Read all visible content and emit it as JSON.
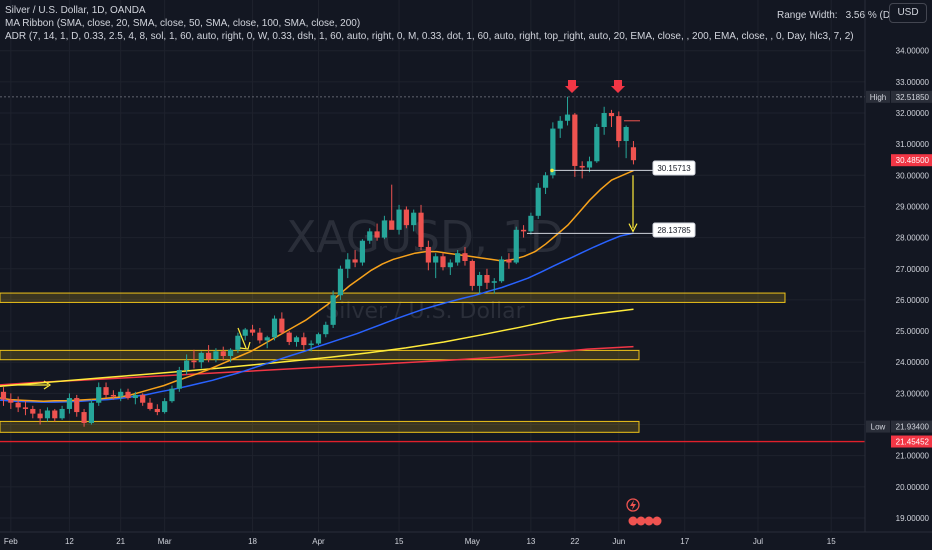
{
  "legend": {
    "title": "Silver / U.S. Dollar, 1D, OANDA",
    "ma_ribbon": "MA Ribbon (SMA, close, 20, SMA, close, 50, SMA, close, 100, SMA, close, 200)",
    "adr": "ADR (7, 14, 1, D, 0.33, 2.5, 4, 8, sol, 1, 60, auto, right, 0, W, 0.33, dsh, 1, 60, auto, right, 0, M, 0.33, dot, 1, 60, auto, right, top_right, auto, 20, EMA, close, , 200, EMA, close, , 0, Day, hlc3, 7, 2)"
  },
  "range_width": {
    "label": "Range Width:",
    "value": "3.56 % (D)"
  },
  "currency": "USD",
  "watermark": {
    "symbol": "XAGUSD, 1D",
    "name": "Silver / U.S. Dollar"
  },
  "colors": {
    "up": "#26a69a",
    "down": "#ef5350",
    "bg": "#131722",
    "ma20": "#f7a21b",
    "ma50": "#2962ff",
    "ma100": "#ffeb3b",
    "ma200": "#f23645",
    "zone": "#f0c419"
  },
  "chart_data": {
    "type": "candlestick",
    "symbol": "Silver / U.S. Dollar",
    "timeframe": "1D",
    "ylim": [
      18.55,
      34.6
    ],
    "y_ticks": [
      "34.00000",
      "33.00000",
      "32.00000",
      "31.00000",
      "30.00000",
      "29.00000",
      "28.00000",
      "27.00000",
      "26.00000",
      "25.00000",
      "24.00000",
      "23.00000",
      "22.00000",
      "21.00000",
      "20.00000",
      "19.00000"
    ],
    "x_ticks": [
      "Feb",
      "12",
      "21",
      "Mar",
      "18",
      "Apr",
      "15",
      "May",
      "13",
      "22",
      "Jun",
      "17",
      "Jul",
      "15"
    ],
    "price_labels": [
      {
        "label": "High",
        "value": "32.51850",
        "kind": "high"
      },
      {
        "label": "",
        "value": "30.48500",
        "kind": "last"
      },
      {
        "label": "Low",
        "value": "21.93400",
        "kind": "low"
      },
      {
        "label": "",
        "value": "21.45452",
        "kind": "line"
      }
    ],
    "annotations": [
      "30.15713",
      "28.13785"
    ],
    "zones": [
      {
        "low": 21.75,
        "high": 22.1
      },
      {
        "low": 24.08,
        "high": 24.38
      },
      {
        "low": 25.92,
        "high": 26.22
      }
    ],
    "ohlc": [
      [
        23.05,
        23.2,
        22.6,
        22.8
      ],
      [
        22.8,
        23.0,
        22.5,
        22.7
      ],
      [
        22.7,
        22.9,
        22.4,
        22.55
      ],
      [
        22.55,
        22.75,
        22.3,
        22.5
      ],
      [
        22.5,
        22.6,
        22.2,
        22.35
      ],
      [
        22.35,
        22.5,
        22.0,
        22.2
      ],
      [
        22.2,
        22.55,
        22.1,
        22.45
      ],
      [
        22.45,
        22.5,
        22.1,
        22.2
      ],
      [
        22.2,
        22.6,
        22.15,
        22.5
      ],
      [
        22.5,
        23.0,
        22.35,
        22.85
      ],
      [
        22.85,
        22.95,
        22.25,
        22.4
      ],
      [
        22.4,
        22.5,
        21.93,
        22.05
      ],
      [
        22.05,
        22.8,
        22.0,
        22.7
      ],
      [
        22.7,
        23.35,
        22.6,
        23.2
      ],
      [
        23.2,
        23.35,
        22.85,
        22.95
      ],
      [
        22.95,
        23.1,
        22.8,
        22.9
      ],
      [
        22.9,
        23.15,
        22.75,
        23.05
      ],
      [
        23.05,
        23.15,
        22.8,
        22.85
      ],
      [
        22.85,
        23.05,
        22.65,
        22.95
      ],
      [
        22.95,
        23.0,
        22.6,
        22.7
      ],
      [
        22.7,
        22.85,
        22.45,
        22.5
      ],
      [
        22.5,
        22.65,
        22.3,
        22.4
      ],
      [
        22.4,
        22.85,
        22.35,
        22.75
      ],
      [
        22.75,
        23.25,
        22.7,
        23.15
      ],
      [
        23.15,
        23.85,
        23.05,
        23.75
      ],
      [
        23.75,
        24.25,
        23.6,
        24.05
      ],
      [
        24.05,
        24.4,
        23.8,
        24.0
      ],
      [
        24.0,
        24.35,
        23.8,
        24.3
      ],
      [
        24.3,
        24.55,
        24.0,
        24.1
      ],
      [
        24.1,
        24.45,
        24.0,
        24.35
      ],
      [
        24.35,
        24.5,
        24.05,
        24.2
      ],
      [
        24.2,
        24.45,
        24.0,
        24.4
      ],
      [
        24.4,
        24.95,
        24.3,
        24.85
      ],
      [
        24.85,
        25.1,
        24.7,
        25.05
      ],
      [
        25.05,
        25.2,
        24.85,
        24.95
      ],
      [
        24.95,
        25.1,
        24.6,
        24.7
      ],
      [
        24.7,
        24.85,
        24.45,
        24.8
      ],
      [
        24.8,
        25.5,
        24.7,
        25.4
      ],
      [
        25.4,
        25.6,
        24.9,
        24.95
      ],
      [
        24.95,
        25.0,
        24.55,
        24.65
      ],
      [
        24.65,
        24.85,
        24.5,
        24.8
      ],
      [
        24.8,
        24.95,
        24.4,
        24.55
      ],
      [
        24.55,
        24.7,
        24.35,
        24.6
      ],
      [
        24.6,
        24.95,
        24.55,
        24.9
      ],
      [
        24.9,
        25.3,
        24.8,
        25.2
      ],
      [
        25.2,
        26.3,
        25.1,
        26.15
      ],
      [
        26.15,
        27.1,
        26.0,
        27.0
      ],
      [
        27.0,
        27.5,
        26.7,
        27.3
      ],
      [
        27.3,
        27.6,
        27.05,
        27.2
      ],
      [
        27.2,
        27.95,
        27.1,
        27.9
      ],
      [
        27.9,
        28.3,
        27.8,
        28.2
      ],
      [
        28.2,
        28.45,
        27.9,
        28.0
      ],
      [
        28.0,
        28.7,
        27.95,
        28.55
      ],
      [
        28.55,
        29.7,
        28.4,
        28.25
      ],
      [
        28.25,
        29.05,
        28.1,
        28.9
      ],
      [
        28.9,
        29.0,
        28.3,
        28.4
      ],
      [
        28.4,
        28.9,
        28.2,
        28.8
      ],
      [
        28.8,
        29.05,
        27.6,
        27.7
      ],
      [
        27.7,
        27.9,
        26.95,
        27.2
      ],
      [
        27.2,
        27.5,
        26.7,
        27.4
      ],
      [
        27.4,
        27.5,
        26.95,
        27.05
      ],
      [
        27.05,
        27.3,
        26.8,
        27.2
      ],
      [
        27.2,
        27.6,
        27.1,
        27.5
      ],
      [
        27.5,
        27.7,
        27.1,
        27.25
      ],
      [
        27.25,
        27.3,
        26.3,
        26.45
      ],
      [
        26.45,
        26.9,
        26.2,
        26.8
      ],
      [
        26.8,
        27.0,
        26.35,
        26.55
      ],
      [
        26.55,
        26.7,
        26.2,
        26.6
      ],
      [
        26.6,
        27.4,
        26.55,
        27.3
      ],
      [
        27.3,
        27.5,
        27.0,
        27.2
      ],
      [
        27.2,
        28.35,
        27.15,
        28.25
      ],
      [
        28.25,
        28.4,
        28.0,
        28.2
      ],
      [
        28.2,
        28.8,
        28.1,
        28.7
      ],
      [
        28.7,
        29.75,
        28.6,
        29.6
      ],
      [
        29.6,
        30.1,
        29.4,
        30.0
      ],
      [
        30.0,
        31.7,
        29.9,
        31.5
      ],
      [
        31.5,
        31.9,
        31.2,
        31.75
      ],
      [
        31.75,
        32.52,
        31.6,
        31.95
      ],
      [
        31.95,
        32.0,
        29.95,
        30.3
      ],
      [
        30.3,
        30.45,
        29.9,
        30.25
      ],
      [
        30.25,
        30.6,
        30.1,
        30.45
      ],
      [
        30.45,
        31.65,
        30.4,
        31.55
      ],
      [
        31.55,
        32.2,
        31.3,
        32.0
      ],
      [
        32.0,
        32.1,
        31.55,
        31.9
      ],
      [
        31.9,
        32.05,
        30.9,
        31.1
      ],
      [
        31.1,
        31.6,
        30.55,
        31.55
      ],
      [
        30.9,
        31.1,
        30.35,
        30.485
      ]
    ],
    "ma20": [
      22.9,
      22.85,
      22.8,
      22.78,
      22.76,
      22.75,
      22.76,
      22.76,
      22.78,
      22.8,
      22.82,
      22.85,
      22.88,
      22.95,
      23.05,
      23.15,
      23.25,
      23.38,
      23.5,
      23.62,
      23.75,
      23.9,
      24.05,
      24.2,
      24.35,
      24.55,
      24.75,
      24.95,
      25.15,
      25.35,
      25.6,
      25.85,
      26.15,
      26.45,
      26.7,
      26.95,
      27.15,
      27.3,
      27.4,
      27.5,
      27.55,
      27.55,
      27.5,
      27.45,
      27.4,
      27.35,
      27.3,
      27.25,
      27.3,
      27.4,
      27.55,
      27.8,
      28.1,
      28.4,
      28.8,
      29.2,
      29.55,
      29.85,
      30.0,
      30.15
    ],
    "ma50": [
      22.8,
      22.78,
      22.75,
      22.73,
      22.72,
      22.72,
      22.73,
      22.75,
      22.78,
      22.8,
      22.84,
      22.9,
      22.96,
      23.05,
      23.13,
      23.22,
      23.32,
      23.42,
      23.54,
      23.66,
      23.8,
      23.94,
      24.08,
      24.22,
      24.35,
      24.5,
      24.64,
      24.78,
      24.92,
      25.08,
      25.24,
      25.4,
      25.55,
      25.7,
      25.82,
      25.94,
      26.05,
      26.15,
      26.28,
      26.4,
      26.55,
      26.7,
      26.9,
      27.1,
      27.3,
      27.5,
      27.7,
      27.88,
      28.05,
      28.14
    ],
    "ma100": [
      23.2,
      23.3,
      23.4,
      23.5,
      23.6,
      23.7,
      23.8,
      23.92,
      24.04,
      24.16,
      24.3,
      24.46,
      24.65,
      24.88,
      25.12,
      25.38,
      25.55,
      25.7
    ],
    "ma200": [
      23.25,
      23.35,
      23.42,
      23.5,
      23.58,
      23.66,
      23.74,
      23.82,
      23.9,
      23.98,
      24.06,
      24.16,
      24.28,
      24.42,
      24.5
    ]
  }
}
